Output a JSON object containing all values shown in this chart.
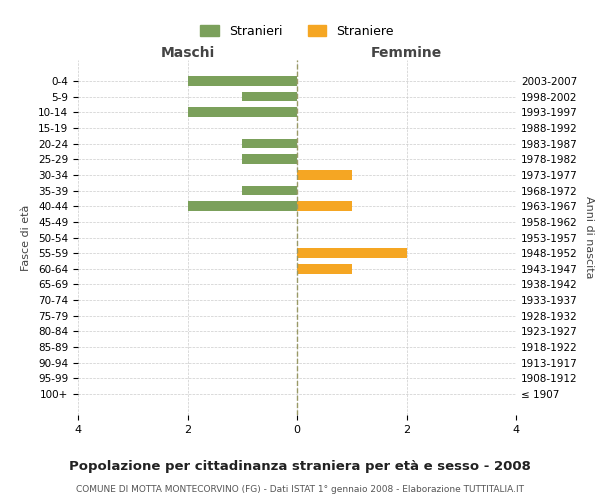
{
  "age_groups": [
    "100+",
    "95-99",
    "90-94",
    "85-89",
    "80-84",
    "75-79",
    "70-74",
    "65-69",
    "60-64",
    "55-59",
    "50-54",
    "45-49",
    "40-44",
    "35-39",
    "30-34",
    "25-29",
    "20-24",
    "15-19",
    "10-14",
    "5-9",
    "0-4"
  ],
  "birth_years": [
    "≤ 1907",
    "1908-1912",
    "1913-1917",
    "1918-1922",
    "1923-1927",
    "1928-1932",
    "1933-1937",
    "1938-1942",
    "1943-1947",
    "1948-1952",
    "1953-1957",
    "1958-1962",
    "1963-1967",
    "1968-1972",
    "1973-1977",
    "1978-1982",
    "1983-1987",
    "1988-1992",
    "1993-1997",
    "1998-2002",
    "2003-2007"
  ],
  "maschi_stranieri": [
    0,
    0,
    0,
    0,
    0,
    0,
    0,
    0,
    0,
    0,
    0,
    0,
    2,
    1,
    0,
    1,
    1,
    0,
    2,
    1,
    2
  ],
  "femmine_straniere": [
    0,
    0,
    0,
    0,
    0,
    0,
    0,
    0,
    1,
    2,
    0,
    0,
    1,
    0,
    1,
    0,
    0,
    0,
    0,
    0,
    0
  ],
  "color_maschi": "#7ba05b",
  "color_femmine": "#f5a623",
  "xlim": 4,
  "title": "Popolazione per cittadinanza straniera per età e sesso - 2008",
  "subtitle": "COMUNE DI MOTTA MONTECORVINO (FG) - Dati ISTAT 1° gennaio 2008 - Elaborazione TUTTITALIA.IT",
  "xlabel_left": "Maschi",
  "xlabel_right": "Femmine",
  "ylabel_left": "Fasce di età",
  "ylabel_right": "Anni di nascita",
  "legend_stranieri": "Stranieri",
  "legend_straniere": "Straniere",
  "background_color": "#ffffff",
  "grid_color": "#cccccc"
}
